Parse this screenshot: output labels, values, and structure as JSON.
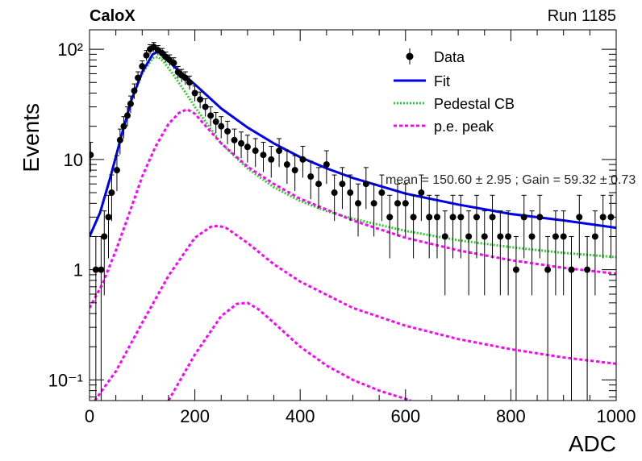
{
  "header": {
    "left": "CaloX",
    "right": "Run 1185"
  },
  "chart_data": {
    "type": "scatter",
    "title": "",
    "xlabel": "ADC",
    "ylabel": "Events",
    "xlim": [
      0,
      1000
    ],
    "ylim": [
      0.065,
      150
    ],
    "yscale": "log",
    "x_ticks": [
      "0",
      "200",
      "400",
      "600",
      "800",
      "1000"
    ],
    "y_ticks": [
      "10⁻¹",
      "1",
      "10",
      "10²"
    ],
    "legend_position": "top-right",
    "legend": [
      "Data",
      "Fit",
      "Pedestal CB",
      "p.e. peak"
    ],
    "annotation": "mean = 150.60 ± 2.95 ; Gain = 59.32 ± 0.73",
    "colors": {
      "data": "#000000",
      "fit": "#0000ee",
      "pedestal": "#33cc33",
      "pe_peak": "#ff00ff"
    },
    "series": [
      {
        "name": "Data",
        "style": "points",
        "x": [
          2,
          12,
          22,
          28,
          36,
          42,
          52,
          58,
          65,
          72,
          78,
          85,
          92,
          100,
          108,
          115,
          122,
          130,
          138,
          145,
          152,
          160,
          168,
          175,
          182,
          190,
          200,
          210,
          220,
          230,
          240,
          250,
          262,
          275,
          288,
          300,
          315,
          330,
          345,
          360,
          375,
          390,
          405,
          420,
          435,
          450,
          465,
          480,
          495,
          510,
          525,
          540,
          555,
          570,
          585,
          600,
          615,
          630,
          645,
          660,
          675,
          690,
          705,
          720,
          735,
          750,
          765,
          780,
          795,
          810,
          825,
          840,
          855,
          870,
          885,
          900,
          915,
          930,
          945,
          960,
          975,
          990
        ],
        "y": [
          11,
          1,
          1,
          2,
          3,
          5,
          8,
          15,
          20,
          25,
          32,
          42,
          55,
          70,
          88,
          100,
          105,
          98,
          92,
          85,
          80,
          75,
          62,
          58,
          55,
          50,
          40,
          35,
          30,
          25,
          22,
          20,
          18,
          15,
          14,
          13,
          12,
          11,
          10,
          12,
          9,
          8,
          10,
          7,
          6,
          9,
          5,
          6,
          5,
          4,
          6,
          4,
          5,
          3,
          4,
          4,
          3,
          5,
          3,
          3,
          2,
          3,
          3,
          2,
          3,
          2,
          3,
          2,
          2,
          1,
          3,
          2,
          3,
          1,
          2,
          2,
          1,
          3,
          1,
          2,
          3,
          3
        ]
      },
      {
        "name": "Fit",
        "style": "line",
        "x": [
          0,
          20,
          40,
          60,
          80,
          100,
          120,
          130,
          140,
          160,
          180,
          200,
          250,
          300,
          350,
          400,
          450,
          500,
          600,
          700,
          800,
          900,
          1000
        ],
        "y": [
          2,
          3.3,
          7,
          16,
          35,
          62,
          90,
          95,
          88,
          70,
          58,
          48,
          29,
          19.5,
          14,
          10.5,
          8.3,
          6.8,
          4.9,
          3.9,
          3.2,
          2.8,
          2.4
        ]
      },
      {
        "name": "Pedestal CB",
        "style": "dotted",
        "x": [
          0,
          20,
          40,
          60,
          80,
          100,
          120,
          130,
          140,
          160,
          180,
          200,
          250,
          300,
          350,
          400,
          450,
          500,
          600,
          700,
          800,
          900,
          1000
        ],
        "y": [
          2,
          3.3,
          7,
          16,
          35,
          60,
          83,
          85,
          78,
          58,
          42,
          30,
          14,
          8.3,
          5.6,
          4.2,
          3.4,
          2.9,
          2.25,
          1.85,
          1.6,
          1.42,
          1.3
        ]
      },
      {
        "name": "p.e. peak",
        "style": "dashed",
        "x": [
          0,
          25,
          50,
          75,
          100,
          125,
          150,
          170,
          185,
          200,
          225,
          250,
          300,
          350,
          400,
          500,
          600,
          700,
          800,
          900,
          1000
        ],
        "y": [
          0.45,
          0.75,
          1.5,
          3.2,
          7,
          13,
          21,
          26.5,
          28.5,
          26,
          19,
          14,
          8.6,
          6.0,
          4.4,
          2.8,
          1.95,
          1.5,
          1.22,
          1.04,
          0.92
        ]
      },
      {
        "name": "",
        "style": "dashed",
        "x": [
          10,
          50,
          100,
          150,
          200,
          230,
          245,
          260,
          300,
          350,
          400,
          500,
          600,
          700,
          800,
          900,
          1000
        ],
        "y": [
          0.065,
          0.12,
          0.33,
          0.88,
          1.95,
          2.45,
          2.5,
          2.38,
          1.75,
          1.12,
          0.78,
          0.45,
          0.31,
          0.235,
          0.19,
          0.16,
          0.14
        ]
      },
      {
        "name": "",
        "style": "dashed",
        "x": [
          150,
          200,
          250,
          280,
          300,
          320,
          350,
          400,
          450,
          500,
          550,
          610
        ],
        "y": [
          0.065,
          0.17,
          0.38,
          0.49,
          0.5,
          0.44,
          0.33,
          0.2,
          0.135,
          0.1,
          0.08,
          0.065
        ]
      }
    ]
  }
}
